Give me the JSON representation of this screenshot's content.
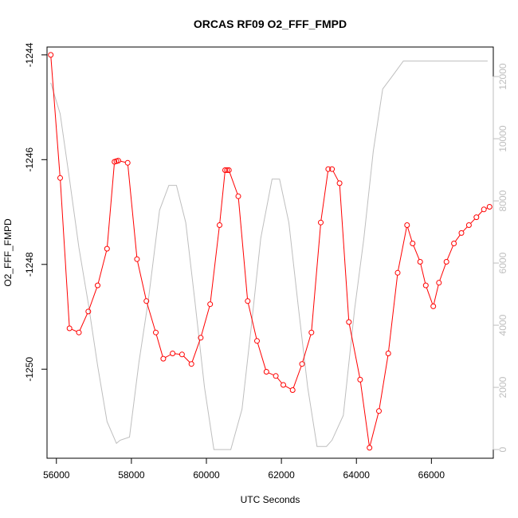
{
  "chart_data": {
    "type": "line",
    "title": "ORCAS RF09 O2_FFF_FMPD",
    "xlabel": "UTC Seconds",
    "ylabel": "O2_FFF_FMPD",
    "xlim": [
      55750,
      67650
    ],
    "ylim": [
      -1251.7,
      -1243.85
    ],
    "y2lim": [
      -280,
      12950
    ],
    "xticks": [
      56000,
      58000,
      60000,
      62000,
      64000,
      66000
    ],
    "yticks": [
      -1250,
      -1248,
      -1246,
      -1244
    ],
    "y2ticks": [
      0,
      2000,
      4000,
      6000,
      8000,
      10000,
      12000
    ],
    "colors": {
      "primary": "#ff0000",
      "secondary": "#bebebe",
      "axis": "#000000"
    },
    "series": [
      {
        "role": "primary",
        "x": [
          55850,
          56100,
          56350,
          56600,
          56850,
          57100,
          57350,
          57550,
          57600,
          57650,
          57900,
          58150,
          58400,
          58650,
          58850,
          59100,
          59350,
          59600,
          59850,
          60100,
          60350,
          60500,
          60550,
          60600,
          60850,
          61100,
          61350,
          61600,
          61850,
          62050,
          62300,
          62550,
          62800,
          63050,
          63250,
          63350,
          63550,
          63800,
          64100,
          64350,
          64600,
          64850,
          65100,
          65350,
          65500,
          65700,
          65850,
          66050,
          66200,
          66400,
          66600,
          66800,
          67000,
          67200,
          67400,
          67550
        ],
        "y": [
          -1244.0,
          -1246.35,
          -1249.22,
          -1249.3,
          -1248.9,
          -1248.4,
          -1247.7,
          -1246.04,
          -1246.03,
          -1246.02,
          -1246.06,
          -1247.9,
          -1248.7,
          -1249.3,
          -1249.8,
          -1249.7,
          -1249.72,
          -1249.9,
          -1249.4,
          -1248.76,
          -1247.25,
          -1246.2,
          -1246.2,
          -1246.2,
          -1246.7,
          -1248.7,
          -1249.46,
          -1250.05,
          -1250.13,
          -1250.3,
          -1250.4,
          -1249.9,
          -1249.3,
          -1247.2,
          -1246.18,
          -1246.18,
          -1246.45,
          -1249.1,
          -1250.2,
          -1251.5,
          -1250.8,
          -1249.7,
          -1248.16,
          -1247.25,
          -1247.6,
          -1247.95,
          -1248.4,
          -1248.8,
          -1248.35,
          -1247.95,
          -1247.6,
          -1247.4,
          -1247.25,
          -1247.1,
          -1246.95,
          -1246.9
        ]
      },
      {
        "role": "secondary",
        "x": [
          55850,
          56100,
          56350,
          56600,
          56850,
          57100,
          57350,
          57600,
          57700,
          57950,
          58200,
          58450,
          58750,
          59000,
          59200,
          59450,
          59700,
          59950,
          60200,
          60450,
          60650,
          60950,
          61200,
          61450,
          61750,
          61950,
          62200,
          62450,
          62700,
          62950,
          63200,
          63350,
          63650,
          63950,
          64200,
          64450,
          64700,
          64950,
          65250,
          65550,
          65850,
          66150,
          66500,
          66850,
          67250,
          67500
        ],
        "y": [
          11800,
          10800,
          8700,
          6500,
          4700,
          2700,
          900,
          200,
          300,
          400,
          2800,
          4800,
          7700,
          8500,
          8500,
          7300,
          4700,
          2000,
          0,
          0,
          0,
          1300,
          4000,
          6800,
          8700,
          8700,
          7300,
          4600,
          2000,
          100,
          100,
          300,
          1100,
          4500,
          6800,
          9600,
          11600,
          12000,
          12500,
          12500,
          12500,
          12500,
          12500,
          12500,
          12500,
          12500
        ]
      }
    ]
  }
}
